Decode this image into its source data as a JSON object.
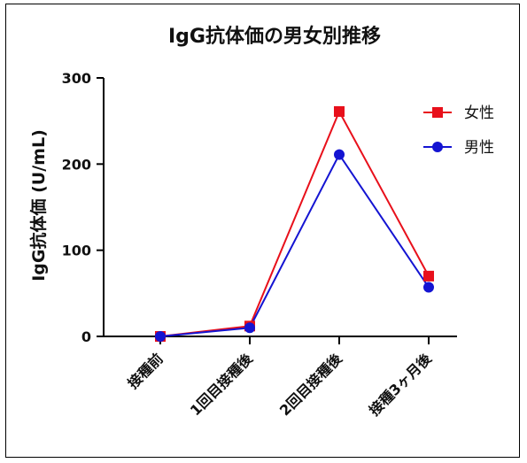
{
  "chart_data": {
    "type": "line",
    "title": "IgG抗体価の男女別推移",
    "xlabel": "",
    "ylabel": "IgG抗体価 (U/mL)",
    "categories": [
      "接種前",
      "1回目接種後",
      "2回目接種後",
      "接種3ヶ月後"
    ],
    "ylim": [
      0,
      300
    ],
    "yticks": [
      0,
      100,
      200,
      300
    ],
    "grid": false,
    "legend_position": "top-right",
    "series": [
      {
        "name": "女性",
        "color": "#e8101b",
        "marker": "square",
        "values": [
          0,
          12,
          261,
          70
        ]
      },
      {
        "name": "男性",
        "color": "#1414d2",
        "marker": "circle",
        "values": [
          0,
          10,
          211,
          57
        ]
      }
    ]
  }
}
